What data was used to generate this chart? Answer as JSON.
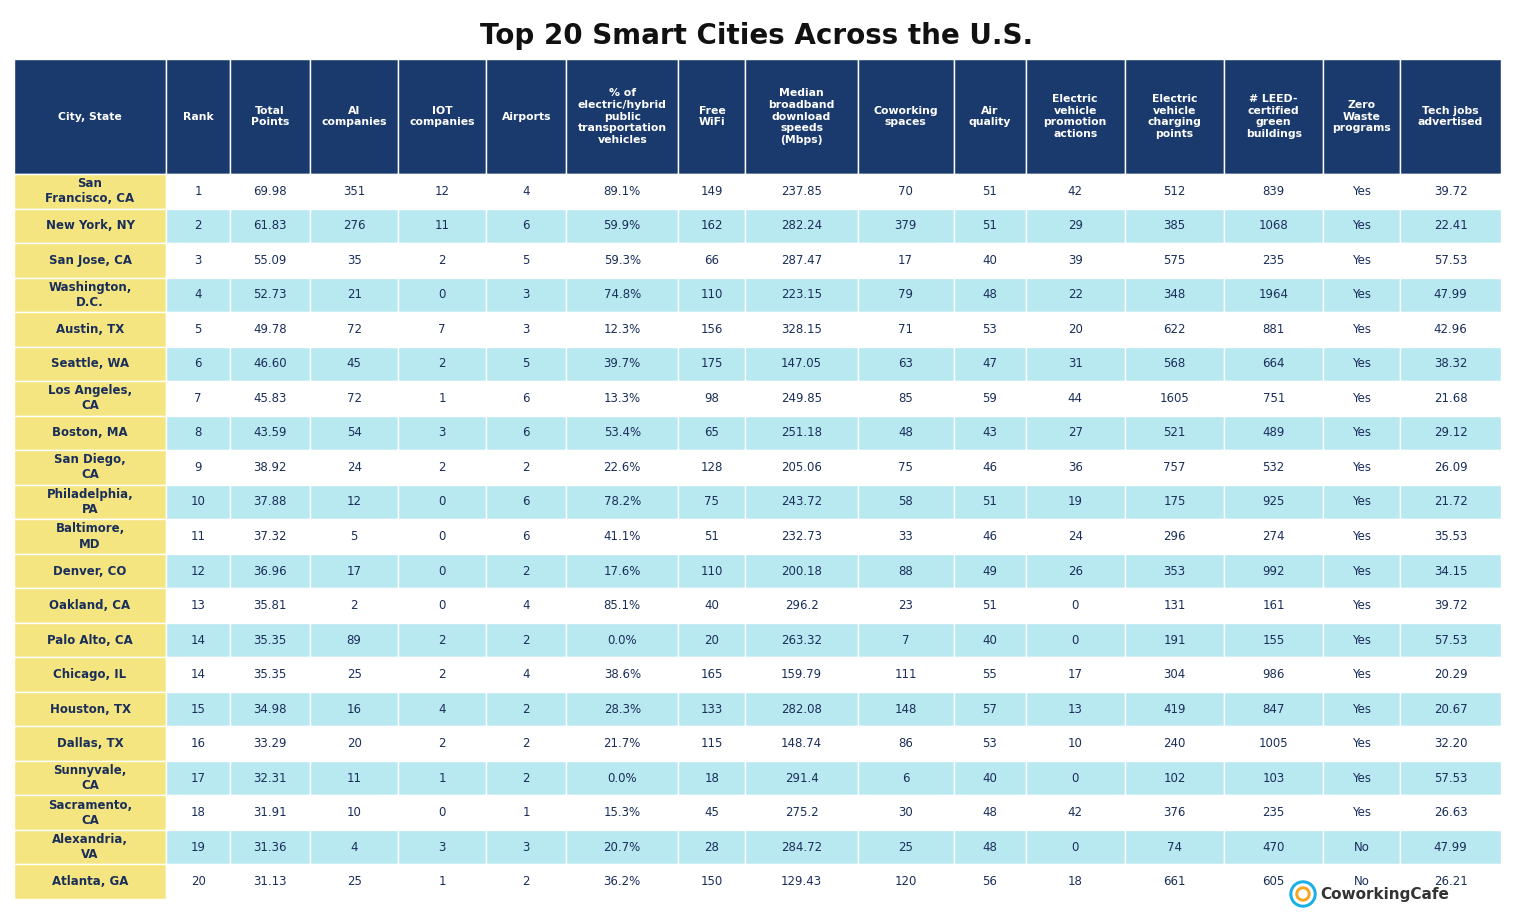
{
  "title": "Top 20 Smart Cities Across the U.S.",
  "title_fontsize": 20,
  "headers": [
    "City, State",
    "Rank",
    "Total\nPoints",
    "AI\ncompanies",
    "IOT\ncompanies",
    "Airports",
    "% of\nelectric/hybrid\npublic\ntransportation\nvehicles",
    "Free\nWiFi",
    "Median\nbroadband\ndownload\nspeeds\n(Mbps)",
    "Coworking\nspaces",
    "Air\nquality",
    "Electric\nvehicle\npromotion\nactions",
    "Electric\nvehicle\ncharging\npoints",
    "# LEED-\ncertified\ngreen\nbuildings",
    "Zero\nWaste\nprograms",
    "Tech jobs\nadvertised"
  ],
  "rows": [
    [
      "San\nFrancisco, CA",
      "1",
      "69.98",
      "351",
      "12",
      "4",
      "89.1%",
      "149",
      "237.85",
      "70",
      "51",
      "42",
      "512",
      "839",
      "Yes",
      "39.72"
    ],
    [
      "New York, NY",
      "2",
      "61.83",
      "276",
      "11",
      "6",
      "59.9%",
      "162",
      "282.24",
      "379",
      "51",
      "29",
      "385",
      "1068",
      "Yes",
      "22.41"
    ],
    [
      "San Jose, CA",
      "3",
      "55.09",
      "35",
      "2",
      "5",
      "59.3%",
      "66",
      "287.47",
      "17",
      "40",
      "39",
      "575",
      "235",
      "Yes",
      "57.53"
    ],
    [
      "Washington,\nD.C.",
      "4",
      "52.73",
      "21",
      "0",
      "3",
      "74.8%",
      "110",
      "223.15",
      "79",
      "48",
      "22",
      "348",
      "1964",
      "Yes",
      "47.99"
    ],
    [
      "Austin, TX",
      "5",
      "49.78",
      "72",
      "7",
      "3",
      "12.3%",
      "156",
      "328.15",
      "71",
      "53",
      "20",
      "622",
      "881",
      "Yes",
      "42.96"
    ],
    [
      "Seattle, WA",
      "6",
      "46.60",
      "45",
      "2",
      "5",
      "39.7%",
      "175",
      "147.05",
      "63",
      "47",
      "31",
      "568",
      "664",
      "Yes",
      "38.32"
    ],
    [
      "Los Angeles,\nCA",
      "7",
      "45.83",
      "72",
      "1",
      "6",
      "13.3%",
      "98",
      "249.85",
      "85",
      "59",
      "44",
      "1605",
      "751",
      "Yes",
      "21.68"
    ],
    [
      "Boston, MA",
      "8",
      "43.59",
      "54",
      "3",
      "6",
      "53.4%",
      "65",
      "251.18",
      "48",
      "43",
      "27",
      "521",
      "489",
      "Yes",
      "29.12"
    ],
    [
      "San Diego,\nCA",
      "9",
      "38.92",
      "24",
      "2",
      "2",
      "22.6%",
      "128",
      "205.06",
      "75",
      "46",
      "36",
      "757",
      "532",
      "Yes",
      "26.09"
    ],
    [
      "Philadelphia,\nPA",
      "10",
      "37.88",
      "12",
      "0",
      "6",
      "78.2%",
      "75",
      "243.72",
      "58",
      "51",
      "19",
      "175",
      "925",
      "Yes",
      "21.72"
    ],
    [
      "Baltimore,\nMD",
      "11",
      "37.32",
      "5",
      "0",
      "6",
      "41.1%",
      "51",
      "232.73",
      "33",
      "46",
      "24",
      "296",
      "274",
      "Yes",
      "35.53"
    ],
    [
      "Denver, CO",
      "12",
      "36.96",
      "17",
      "0",
      "2",
      "17.6%",
      "110",
      "200.18",
      "88",
      "49",
      "26",
      "353",
      "992",
      "Yes",
      "34.15"
    ],
    [
      "Oakland, CA",
      "13",
      "35.81",
      "2",
      "0",
      "4",
      "85.1%",
      "40",
      "296.2",
      "23",
      "51",
      "0",
      "131",
      "161",
      "Yes",
      "39.72"
    ],
    [
      "Palo Alto, CA",
      "14",
      "35.35",
      "89",
      "2",
      "2",
      "0.0%",
      "20",
      "263.32",
      "7",
      "40",
      "0",
      "191",
      "155",
      "Yes",
      "57.53"
    ],
    [
      "Chicago, IL",
      "14",
      "35.35",
      "25",
      "2",
      "4",
      "38.6%",
      "165",
      "159.79",
      "111",
      "55",
      "17",
      "304",
      "986",
      "Yes",
      "20.29"
    ],
    [
      "Houston, TX",
      "15",
      "34.98",
      "16",
      "4",
      "2",
      "28.3%",
      "133",
      "282.08",
      "148",
      "57",
      "13",
      "419",
      "847",
      "Yes",
      "20.67"
    ],
    [
      "Dallas, TX",
      "16",
      "33.29",
      "20",
      "2",
      "2",
      "21.7%",
      "115",
      "148.74",
      "86",
      "53",
      "10",
      "240",
      "1005",
      "Yes",
      "32.20"
    ],
    [
      "Sunnyvale,\nCA",
      "17",
      "32.31",
      "11",
      "1",
      "2",
      "0.0%",
      "18",
      "291.4",
      "6",
      "40",
      "0",
      "102",
      "103",
      "Yes",
      "57.53"
    ],
    [
      "Sacramento,\nCA",
      "18",
      "31.91",
      "10",
      "0",
      "1",
      "15.3%",
      "45",
      "275.2",
      "30",
      "48",
      "42",
      "376",
      "235",
      "Yes",
      "26.63"
    ],
    [
      "Alexandria,\nVA",
      "19",
      "31.36",
      "4",
      "3",
      "3",
      "20.7%",
      "28",
      "284.72",
      "25",
      "48",
      "0",
      "74",
      "470",
      "No",
      "47.99"
    ],
    [
      "Atlanta, GA",
      "20",
      "31.13",
      "25",
      "1",
      "2",
      "36.2%",
      "150",
      "129.43",
      "120",
      "56",
      "18",
      "661",
      "605",
      "No",
      "26.21"
    ]
  ],
  "header_bg": "#1a3a6e",
  "header_text": "#ffffff",
  "city_bg": "#f5e580",
  "city_text": "#1a2e5a",
  "row_bg_odd": "#ffffff",
  "row_bg_even": "#b8e8f0",
  "row_text": "#1a2e5a",
  "background": "#ffffff",
  "col_widths_raw": [
    9.5,
    4.0,
    5.0,
    5.5,
    5.5,
    5.0,
    7.0,
    4.2,
    7.0,
    6.0,
    4.5,
    6.2,
    6.2,
    6.2,
    4.8,
    6.3
  ],
  "data_fontsize": 8.5,
  "header_fontsize": 7.8,
  "logo_text": "CoworkingCafe",
  "logo_fontsize": 11
}
